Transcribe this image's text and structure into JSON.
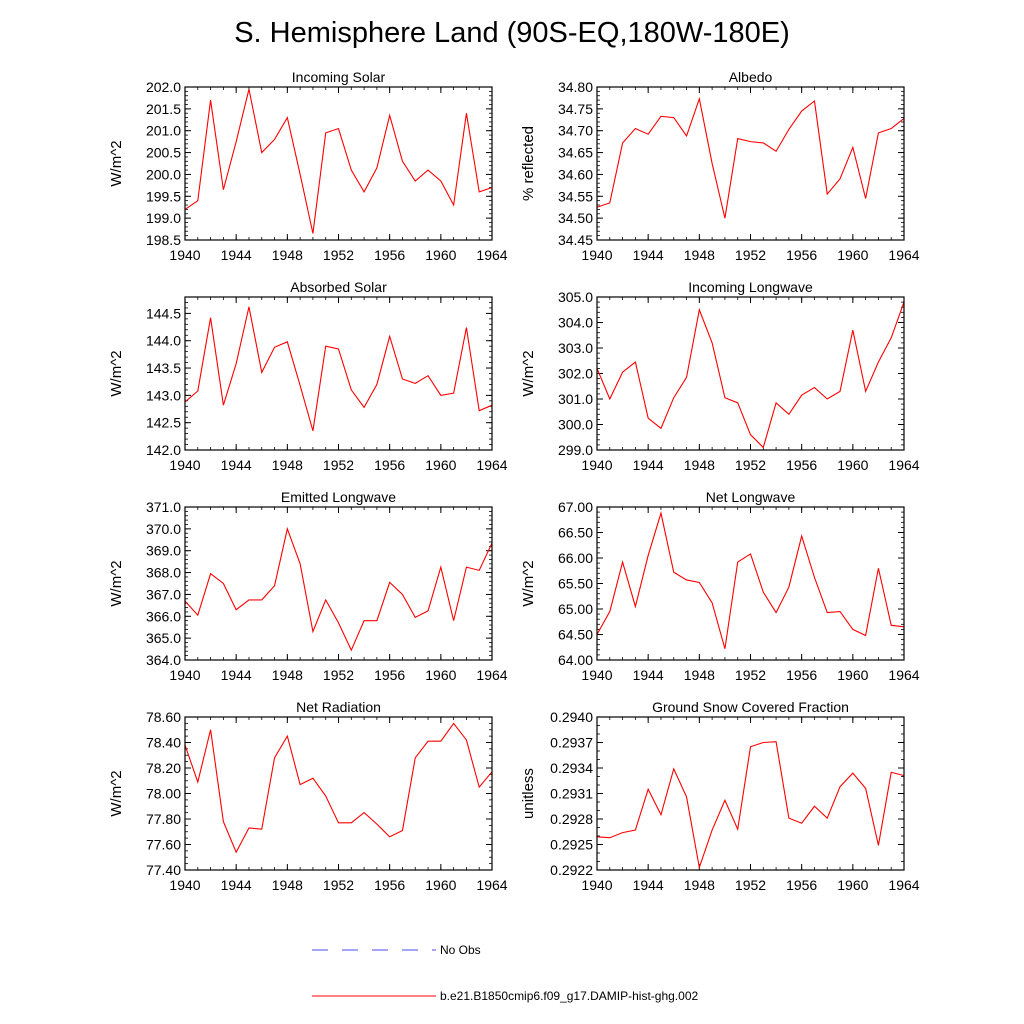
{
  "title": "S. Hemisphere Land (90S-EQ,180W-180E)",
  "legend": {
    "items": [
      {
        "label": "No Obs",
        "color": "#4a4af0",
        "dash": true
      },
      {
        "label": "b.e21.B1850cmip6.f09_g17.DAMIP-hist-ghg.002",
        "color": "#ff0000",
        "dash": false
      }
    ]
  },
  "chart_data": [
    {
      "type": "line",
      "title": "Incoming Solar",
      "ylabel": "W/m^2",
      "xlim": [
        1940,
        1964
      ],
      "x_ticks": [
        1940,
        1944,
        1948,
        1952,
        1956,
        1960,
        1964
      ],
      "ylim": [
        198.5,
        202.0
      ],
      "y_ticks": [
        "198.5",
        "199.0",
        "199.5",
        "200.0",
        "200.5",
        "201.0",
        "201.5",
        "202.0"
      ],
      "y_minor_step": 0.1,
      "series": [
        {
          "color": "#ff0000",
          "x": [
            1940,
            1941,
            1942,
            1943,
            1944,
            1945,
            1946,
            1947,
            1948,
            1949,
            1950,
            1951,
            1952,
            1953,
            1954,
            1955,
            1956,
            1957,
            1958,
            1959,
            1960,
            1961,
            1962,
            1963,
            1964
          ],
          "y": [
            199.2,
            199.4,
            201.7,
            199.65,
            200.75,
            201.95,
            200.5,
            200.8,
            201.3,
            200.0,
            198.65,
            200.95,
            201.05,
            200.1,
            199.6,
            200.15,
            201.35,
            200.3,
            199.85,
            200.1,
            199.85,
            199.3,
            201.4,
            199.6,
            199.7
          ]
        }
      ]
    },
    {
      "type": "line",
      "title": "Albedo",
      "ylabel": "% reflected",
      "xlim": [
        1940,
        1964
      ],
      "x_ticks": [
        1940,
        1944,
        1948,
        1952,
        1956,
        1960,
        1964
      ],
      "ylim": [
        34.45,
        34.8
      ],
      "y_ticks": [
        "34.45",
        "34.50",
        "34.55",
        "34.60",
        "34.65",
        "34.70",
        "34.75",
        "34.80"
      ],
      "y_minor_step": 0.01,
      "series": [
        {
          "color": "#ff0000",
          "x": [
            1940,
            1941,
            1942,
            1943,
            1944,
            1945,
            1946,
            1947,
            1948,
            1949,
            1950,
            1951,
            1952,
            1953,
            1954,
            1955,
            1956,
            1957,
            1958,
            1959,
            1960,
            1961,
            1962,
            1963,
            1964
          ],
          "y": [
            34.525,
            34.535,
            34.672,
            34.705,
            34.692,
            34.733,
            34.73,
            34.688,
            34.773,
            34.625,
            34.5,
            34.682,
            34.675,
            34.672,
            34.653,
            34.703,
            34.745,
            34.768,
            34.555,
            34.59,
            34.662,
            34.545,
            34.695,
            34.705,
            34.728
          ]
        }
      ]
    },
    {
      "type": "line",
      "title": "Absorbed Solar",
      "ylabel": "W/m^2",
      "xlim": [
        1940,
        1964
      ],
      "x_ticks": [
        1940,
        1944,
        1948,
        1952,
        1956,
        1960,
        1964
      ],
      "ylim": [
        142.0,
        144.8
      ],
      "y_ticks": [
        "142.0",
        "142.5",
        "143.0",
        "143.5",
        "144.0",
        "144.5"
      ],
      "y_minor_step": 0.1,
      "series": [
        {
          "color": "#ff0000",
          "x": [
            1940,
            1941,
            1942,
            1943,
            1944,
            1945,
            1946,
            1947,
            1948,
            1949,
            1950,
            1951,
            1952,
            1953,
            1954,
            1955,
            1956,
            1957,
            1958,
            1959,
            1960,
            1961,
            1962,
            1963,
            1964
          ],
          "y": [
            142.88,
            143.08,
            144.42,
            142.82,
            143.58,
            144.62,
            143.42,
            143.88,
            143.98,
            143.18,
            142.35,
            143.9,
            143.85,
            143.1,
            142.78,
            143.2,
            144.08,
            143.3,
            143.22,
            143.36,
            143.0,
            143.04,
            144.24,
            142.72,
            142.82
          ]
        }
      ]
    },
    {
      "type": "line",
      "title": "Incoming Longwave",
      "ylabel": "W/m^2",
      "xlim": [
        1940,
        1964
      ],
      "x_ticks": [
        1940,
        1944,
        1948,
        1952,
        1956,
        1960,
        1964
      ],
      "ylim": [
        299.0,
        305.0
      ],
      "y_ticks": [
        "299.0",
        "300.0",
        "301.0",
        "302.0",
        "303.0",
        "304.0",
        "305.0"
      ],
      "y_minor_step": 0.2,
      "series": [
        {
          "color": "#ff0000",
          "x": [
            1940,
            1941,
            1942,
            1943,
            1944,
            1945,
            1946,
            1947,
            1948,
            1949,
            1950,
            1951,
            1952,
            1953,
            1954,
            1955,
            1956,
            1957,
            1958,
            1959,
            1960,
            1961,
            1962,
            1963,
            1964
          ],
          "y": [
            302.2,
            301.0,
            302.05,
            302.45,
            300.25,
            299.85,
            301.05,
            301.85,
            304.5,
            303.2,
            301.05,
            300.85,
            299.6,
            299.1,
            300.85,
            300.4,
            301.15,
            301.45,
            301.0,
            301.3,
            303.7,
            301.3,
            302.45,
            303.4,
            304.8
          ]
        }
      ]
    },
    {
      "type": "line",
      "title": "Emitted Longwave",
      "ylabel": "W/m^2",
      "xlim": [
        1940,
        1964
      ],
      "x_ticks": [
        1940,
        1944,
        1948,
        1952,
        1956,
        1960,
        1964
      ],
      "ylim": [
        364.0,
        371.0
      ],
      "y_ticks": [
        "364.0",
        "365.0",
        "366.0",
        "367.0",
        "368.0",
        "369.0",
        "370.0",
        "371.0"
      ],
      "y_minor_step": 0.2,
      "series": [
        {
          "color": "#ff0000",
          "x": [
            1940,
            1941,
            1942,
            1943,
            1944,
            1945,
            1946,
            1947,
            1948,
            1949,
            1950,
            1951,
            1952,
            1953,
            1954,
            1955,
            1956,
            1957,
            1958,
            1959,
            1960,
            1961,
            1962,
            1963,
            1964
          ],
          "y": [
            366.7,
            366.05,
            367.95,
            367.5,
            366.3,
            366.75,
            366.75,
            367.4,
            370.0,
            368.4,
            365.3,
            366.75,
            365.7,
            364.45,
            365.8,
            365.8,
            367.55,
            367.0,
            365.95,
            366.25,
            368.25,
            365.8,
            368.25,
            368.1,
            369.35
          ]
        }
      ]
    },
    {
      "type": "line",
      "title": "Net Longwave",
      "ylabel": "W/m^2",
      "xlim": [
        1940,
        1964
      ],
      "x_ticks": [
        1940,
        1944,
        1948,
        1952,
        1956,
        1960,
        1964
      ],
      "ylim": [
        64.0,
        67.0
      ],
      "y_ticks": [
        "64.00",
        "64.50",
        "65.00",
        "65.50",
        "66.00",
        "66.50",
        "67.00"
      ],
      "y_minor_step": 0.1,
      "series": [
        {
          "color": "#ff0000",
          "x": [
            1940,
            1941,
            1942,
            1943,
            1944,
            1945,
            1946,
            1947,
            1948,
            1949,
            1950,
            1951,
            1952,
            1953,
            1954,
            1955,
            1956,
            1957,
            1958,
            1959,
            1960,
            1961,
            1962,
            1963,
            1964
          ],
          "y": [
            64.5,
            64.95,
            65.92,
            65.05,
            66.05,
            66.88,
            65.72,
            65.57,
            65.52,
            65.12,
            64.22,
            65.92,
            66.08,
            65.33,
            64.93,
            65.43,
            66.43,
            65.62,
            64.93,
            64.95,
            64.6,
            64.48,
            65.8,
            64.68,
            64.65
          ]
        }
      ]
    },
    {
      "type": "line",
      "title": "Net Radiation",
      "ylabel": "W/m^2",
      "xlim": [
        1940,
        1964
      ],
      "x_ticks": [
        1940,
        1944,
        1948,
        1952,
        1956,
        1960,
        1964
      ],
      "ylim": [
        77.4,
        78.6
      ],
      "y_ticks": [
        "77.40",
        "77.60",
        "77.80",
        "78.00",
        "78.20",
        "78.40",
        "78.60"
      ],
      "y_minor_step": 0.05,
      "series": [
        {
          "color": "#ff0000",
          "x": [
            1940,
            1941,
            1942,
            1943,
            1944,
            1945,
            1946,
            1947,
            1948,
            1949,
            1950,
            1951,
            1952,
            1953,
            1954,
            1955,
            1956,
            1957,
            1958,
            1959,
            1960,
            1961,
            1962,
            1963,
            1964
          ],
          "y": [
            78.38,
            78.09,
            78.5,
            77.78,
            77.54,
            77.73,
            77.72,
            78.28,
            78.45,
            78.07,
            78.12,
            77.98,
            77.77,
            77.77,
            77.85,
            77.76,
            77.66,
            77.71,
            78.28,
            78.41,
            78.41,
            78.55,
            78.42,
            78.05,
            78.17
          ]
        }
      ]
    },
    {
      "type": "line",
      "title": "Ground Snow Covered Fraction",
      "ylabel": "unitless",
      "xlim": [
        1940,
        1964
      ],
      "x_ticks": [
        1940,
        1944,
        1948,
        1952,
        1956,
        1960,
        1964
      ],
      "ylim": [
        0.2922,
        0.294
      ],
      "y_ticks": [
        "0.2922",
        "0.2925",
        "0.2928",
        "0.2931",
        "0.2934",
        "0.2937",
        "0.2940"
      ],
      "y_minor_step": 0.0001,
      "series": [
        {
          "color": "#ff0000",
          "x": [
            1940,
            1941,
            1942,
            1943,
            1944,
            1945,
            1946,
            1947,
            1948,
            1949,
            1950,
            1951,
            1952,
            1953,
            1954,
            1955,
            1956,
            1957,
            1958,
            1959,
            1960,
            1961,
            1962,
            1963,
            1964
          ],
          "y": [
            0.29259,
            0.29258,
            0.29264,
            0.29267,
            0.29315,
            0.29285,
            0.29339,
            0.29306,
            0.29223,
            0.29267,
            0.29302,
            0.29268,
            0.29365,
            0.2937,
            0.29371,
            0.29281,
            0.29275,
            0.29295,
            0.29281,
            0.29318,
            0.29334,
            0.29316,
            0.29249,
            0.29335,
            0.29331
          ]
        }
      ]
    }
  ]
}
